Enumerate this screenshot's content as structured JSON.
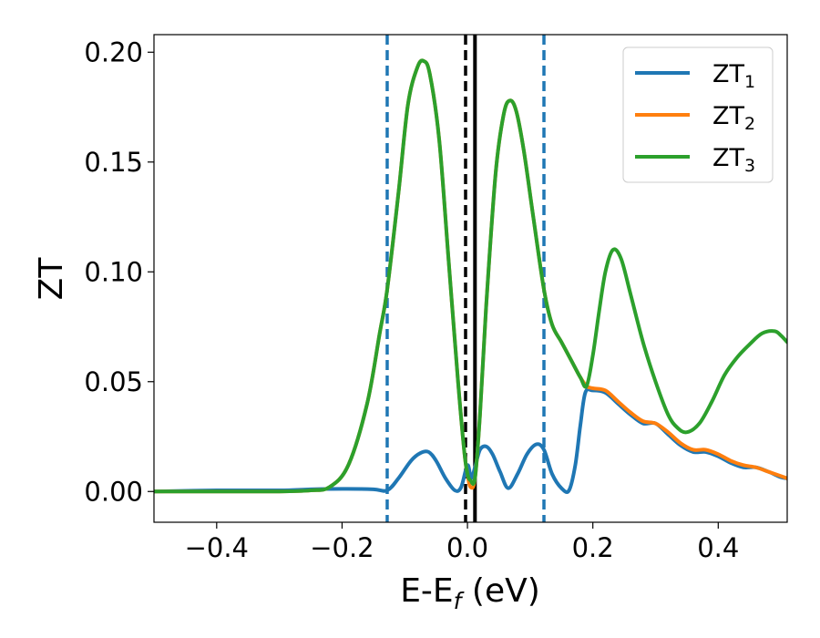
{
  "chart_data": {
    "type": "line",
    "xlabel": "E-E",
    "xlabel_sub": "f",
    "xlabel_unit": " (eV)",
    "ylabel": "ZT",
    "xlim": [
      -0.5,
      0.51
    ],
    "ylim": [
      -0.014,
      0.208
    ],
    "xticks": [
      -0.4,
      -0.2,
      0.0,
      0.2,
      0.4
    ],
    "xtick_labels": [
      "−0.4",
      "−0.2",
      "0.0",
      "0.2",
      "0.4"
    ],
    "yticks": [
      0.0,
      0.05,
      0.1,
      0.15,
      0.2
    ],
    "ytick_labels": [
      "0.00",
      "0.05",
      "0.10",
      "0.15",
      "0.20"
    ],
    "grid": false,
    "legend_position": "top-right",
    "vlines": [
      {
        "x": -0.128,
        "style": "dashed",
        "color": "#1f77b4"
      },
      {
        "x": 0.122,
        "style": "dashed",
        "color": "#1f77b4"
      },
      {
        "x": -0.003,
        "style": "dashed",
        "color": "#000000"
      },
      {
        "x": 0.012,
        "style": "solid",
        "color": "#000000"
      }
    ],
    "series": [
      {
        "name": "ZT",
        "subscript": "1",
        "color": "#1f77b4",
        "x": [
          -0.5,
          -0.4,
          -0.3,
          -0.25,
          -0.2,
          -0.15,
          -0.128,
          -0.11,
          -0.09,
          -0.075,
          -0.062,
          -0.05,
          -0.035,
          -0.02,
          -0.01,
          0.0,
          0.006,
          0.012,
          0.02,
          0.03,
          0.04,
          0.052,
          0.065,
          0.08,
          0.095,
          0.11,
          0.122,
          0.135,
          0.15,
          0.162,
          0.172,
          0.18,
          0.188,
          0.2,
          0.22,
          0.24,
          0.26,
          0.28,
          0.3,
          0.32,
          0.34,
          0.36,
          0.38,
          0.4,
          0.42,
          0.44,
          0.46,
          0.48,
          0.5,
          0.51
        ],
        "y": [
          0.0,
          0.0005,
          0.0005,
          0.001,
          0.0012,
          0.001,
          0.0005,
          0.006,
          0.014,
          0.0175,
          0.018,
          0.014,
          0.006,
          0.0005,
          0.002,
          0.012,
          0.006,
          0.011,
          0.019,
          0.0205,
          0.017,
          0.009,
          0.0015,
          0.008,
          0.017,
          0.0215,
          0.019,
          0.008,
          0.0015,
          0.0005,
          0.012,
          0.03,
          0.045,
          0.046,
          0.045,
          0.04,
          0.035,
          0.031,
          0.031,
          0.026,
          0.021,
          0.018,
          0.018,
          0.016,
          0.013,
          0.011,
          0.011,
          0.009,
          0.0065,
          0.006
        ]
      },
      {
        "name": "ZT",
        "subscript": "2",
        "color": "#ff7f0e",
        "x": [
          -0.5,
          -0.4,
          -0.3,
          -0.25,
          -0.22,
          -0.19,
          -0.16,
          -0.14,
          -0.128,
          -0.11,
          -0.095,
          -0.08,
          -0.07,
          -0.06,
          -0.045,
          -0.03,
          -0.015,
          -0.005,
          0.0,
          0.005,
          0.012,
          0.02,
          0.03,
          0.045,
          0.058,
          0.068,
          0.078,
          0.09,
          0.105,
          0.122,
          0.135,
          0.15,
          0.165,
          0.18,
          0.19,
          0.2,
          0.22,
          0.24,
          0.26,
          0.28,
          0.3,
          0.32,
          0.34,
          0.36,
          0.38,
          0.4,
          0.42,
          0.44,
          0.46,
          0.48,
          0.5,
          0.51
        ],
        "y": [
          0.0,
          0.0,
          0.0,
          0.0005,
          0.002,
          0.012,
          0.04,
          0.072,
          0.092,
          0.136,
          0.176,
          0.193,
          0.196,
          0.19,
          0.16,
          0.105,
          0.05,
          0.018,
          0.008,
          0.002,
          0.006,
          0.035,
          0.085,
          0.145,
          0.172,
          0.178,
          0.173,
          0.155,
          0.125,
          0.092,
          0.076,
          0.068,
          0.06,
          0.052,
          0.048,
          0.047,
          0.046,
          0.041,
          0.036,
          0.032,
          0.031,
          0.027,
          0.022,
          0.019,
          0.019,
          0.017,
          0.014,
          0.012,
          0.011,
          0.009,
          0.007,
          0.006
        ]
      },
      {
        "name": "ZT",
        "subscript": "3",
        "color": "#2ca02c",
        "x": [
          -0.5,
          -0.4,
          -0.3,
          -0.25,
          -0.22,
          -0.19,
          -0.16,
          -0.14,
          -0.128,
          -0.11,
          -0.095,
          -0.08,
          -0.07,
          -0.06,
          -0.045,
          -0.03,
          -0.015,
          -0.005,
          0.0,
          0.005,
          0.012,
          0.02,
          0.03,
          0.045,
          0.058,
          0.068,
          0.078,
          0.09,
          0.105,
          0.122,
          0.135,
          0.15,
          0.165,
          0.18,
          0.19,
          0.2,
          0.21,
          0.22,
          0.232,
          0.245,
          0.26,
          0.28,
          0.3,
          0.32,
          0.335,
          0.35,
          0.37,
          0.39,
          0.41,
          0.43,
          0.45,
          0.47,
          0.49,
          0.5,
          0.51
        ],
        "y": [
          0.0,
          0.0,
          0.0,
          0.0005,
          0.002,
          0.012,
          0.04,
          0.072,
          0.092,
          0.136,
          0.176,
          0.193,
          0.196,
          0.19,
          0.16,
          0.105,
          0.05,
          0.018,
          0.008,
          0.005,
          0.006,
          0.035,
          0.085,
          0.145,
          0.172,
          0.178,
          0.173,
          0.155,
          0.125,
          0.092,
          0.076,
          0.068,
          0.06,
          0.052,
          0.048,
          0.062,
          0.082,
          0.1,
          0.11,
          0.106,
          0.09,
          0.068,
          0.05,
          0.035,
          0.029,
          0.027,
          0.031,
          0.041,
          0.053,
          0.061,
          0.067,
          0.072,
          0.073,
          0.071,
          0.068
        ]
      }
    ]
  }
}
